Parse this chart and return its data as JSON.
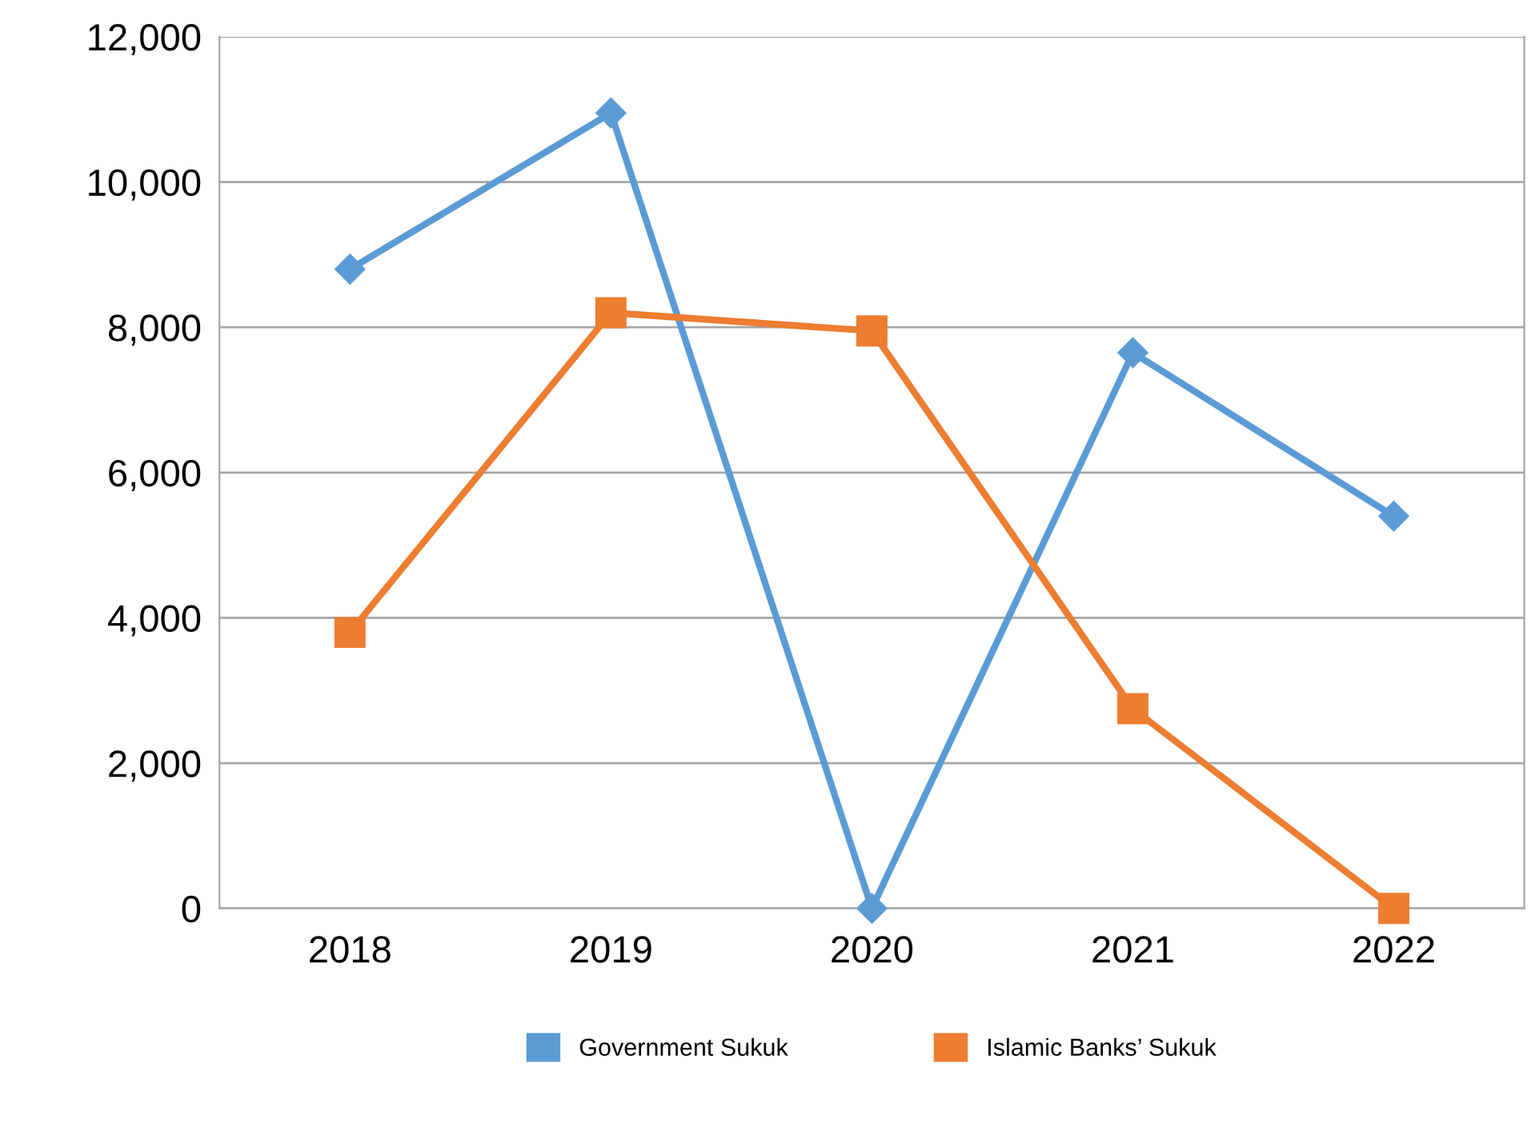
{
  "chart_data": {
    "type": "line",
    "categories": [
      "2018",
      "2019",
      "2020",
      "2021",
      "2022"
    ],
    "series": [
      {
        "name": "Government Sukuk",
        "color": "#5b9bd5",
        "marker": "diamond",
        "values": [
          8800,
          10950,
          0,
          7650,
          5400
        ]
      },
      {
        "name": "Islamic Banks’ Sukuk",
        "color": "#ed7d31",
        "marker": "square",
        "values": [
          3800,
          8200,
          7950,
          2750,
          0
        ]
      }
    ],
    "ylim": [
      0,
      12000
    ],
    "yticks": [
      {
        "value": 0,
        "label": "0"
      },
      {
        "value": 2000,
        "label": "2,000"
      },
      {
        "value": 4000,
        "label": "4,000"
      },
      {
        "value": 6000,
        "label": "6,000"
      },
      {
        "value": 8000,
        "label": "8,000"
      },
      {
        "value": 10000,
        "label": "10,000"
      },
      {
        "value": 12000,
        "label": "12,000"
      }
    ],
    "grid": "y",
    "legend": "bottom",
    "line_style": "solid"
  }
}
